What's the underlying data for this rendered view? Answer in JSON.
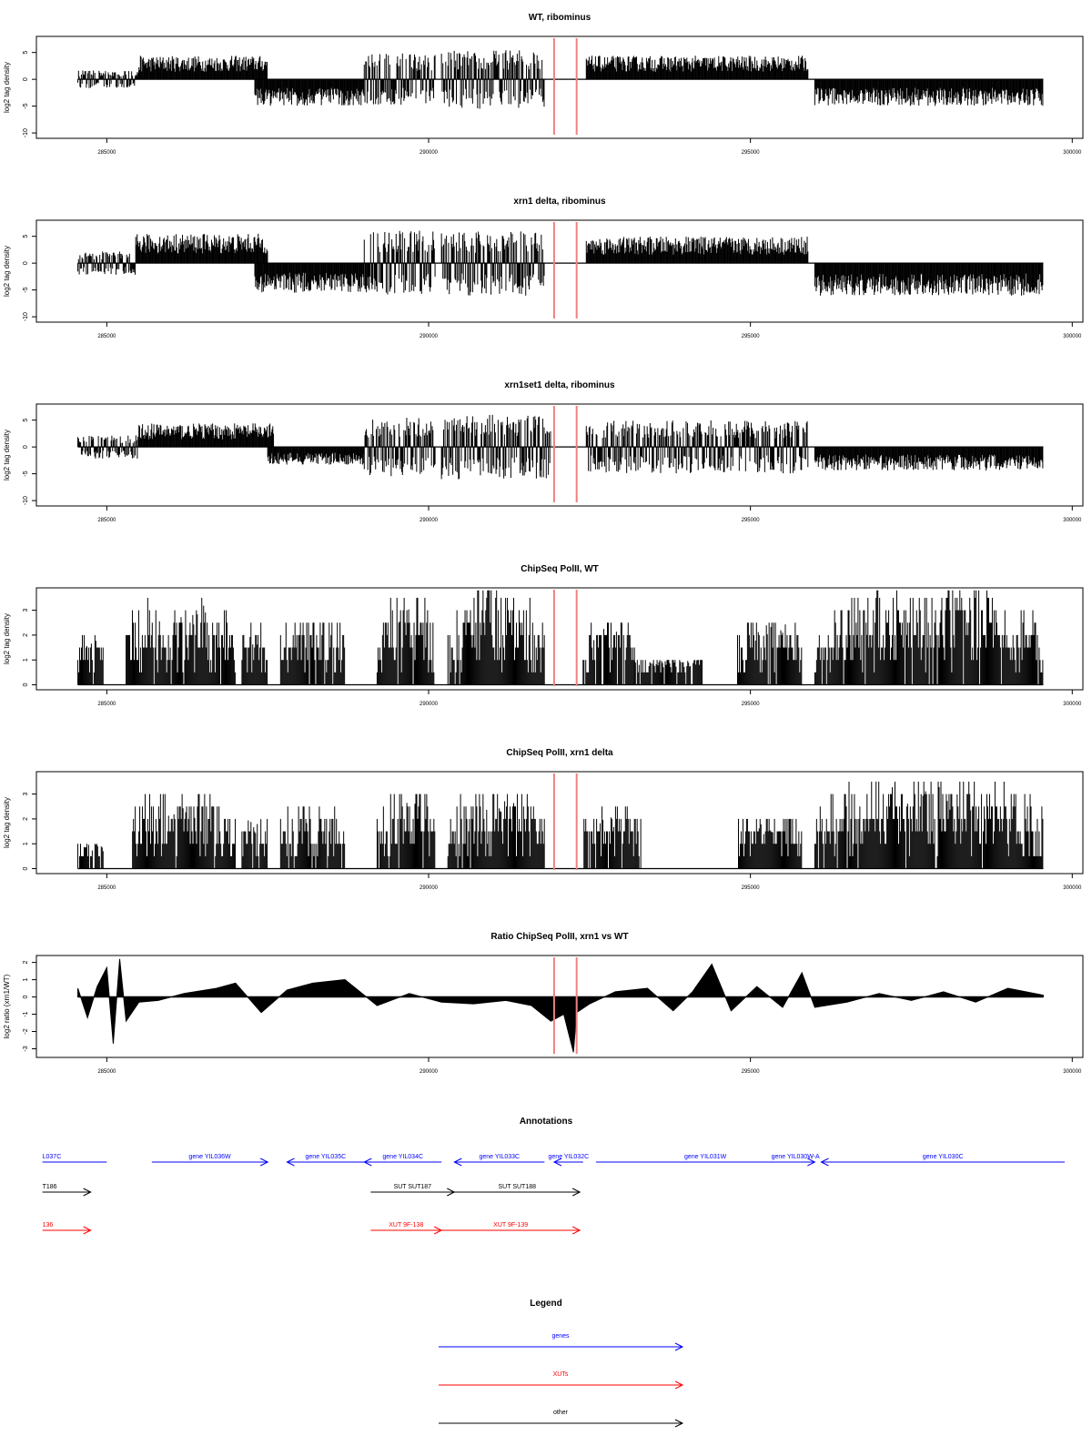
{
  "chart_data": [
    {
      "type": "bar",
      "title": "WT, ribominus",
      "ylabel": "log2 tag density",
      "xlim": [
        284500,
        299600
      ],
      "ylim": [
        -11,
        8
      ],
      "yticks": [
        -10,
        -5,
        0,
        5
      ],
      "xticks": [
        285000,
        290000,
        295000,
        300000
      ],
      "xtick_labels": [
        "285000",
        "290000",
        "295000",
        "300000"
      ],
      "marker_lines_x": [
        291950,
        292300
      ],
      "segments": [
        {
          "start": 284550,
          "end": 285500,
          "amp": 1.5,
          "dir": "mixed"
        },
        {
          "start": 285500,
          "end": 287500,
          "amp": 4.0,
          "dir": "pos"
        },
        {
          "start": 287300,
          "end": 289000,
          "amp": 4.5,
          "dir": "neg"
        },
        {
          "start": 289000,
          "end": 290100,
          "amp": 4.5,
          "dir": "mixed"
        },
        {
          "start": 290200,
          "end": 291800,
          "amp": 5.0,
          "dir": "mixed"
        },
        {
          "start": 292450,
          "end": 295900,
          "amp": 4.0,
          "dir": "pos"
        },
        {
          "start": 296000,
          "end": 299550,
          "amp": 4.5,
          "dir": "neg"
        }
      ]
    },
    {
      "type": "bar",
      "title": "xrn1 delta, ribominus",
      "ylabel": "log2 tag density",
      "xlim": [
        284500,
        299600
      ],
      "ylim": [
        -11,
        8
      ],
      "yticks": [
        -10,
        -5,
        0,
        5
      ],
      "xticks": [
        285000,
        290000,
        295000,
        300000
      ],
      "xtick_labels": [
        "285000",
        "290000",
        "295000",
        "300000"
      ],
      "marker_lines_x": [
        291950,
        292300
      ],
      "segments": [
        {
          "start": 284550,
          "end": 285450,
          "amp": 2.0,
          "dir": "mixed"
        },
        {
          "start": 285450,
          "end": 287500,
          "amp": 5.0,
          "dir": "pos"
        },
        {
          "start": 287300,
          "end": 289000,
          "amp": 5.0,
          "dir": "neg"
        },
        {
          "start": 289000,
          "end": 290100,
          "amp": 5.5,
          "dir": "mixed"
        },
        {
          "start": 290200,
          "end": 291800,
          "amp": 5.5,
          "dir": "mixed"
        },
        {
          "start": 292450,
          "end": 295900,
          "amp": 4.5,
          "dir": "pos"
        },
        {
          "start": 296000,
          "end": 299550,
          "amp": 5.5,
          "dir": "neg"
        }
      ]
    },
    {
      "type": "bar",
      "title": "xrn1set1 delta, ribominus",
      "ylabel": "log2 tag density",
      "xlim": [
        284500,
        299600
      ],
      "ylim": [
        -11,
        8
      ],
      "yticks": [
        -10,
        -5,
        0,
        5
      ],
      "xticks": [
        285000,
        290000,
        295000,
        300000
      ],
      "xtick_labels": [
        "285000",
        "290000",
        "295000",
        "300000"
      ],
      "marker_lines_x": [
        291950,
        292300
      ],
      "segments": [
        {
          "start": 284550,
          "end": 285500,
          "amp": 2.0,
          "dir": "mixed"
        },
        {
          "start": 285500,
          "end": 287600,
          "amp": 4.0,
          "dir": "pos"
        },
        {
          "start": 287500,
          "end": 289000,
          "amp": 3.0,
          "dir": "neg"
        },
        {
          "start": 289000,
          "end": 290100,
          "amp": 5.0,
          "dir": "mixed"
        },
        {
          "start": 290200,
          "end": 291900,
          "amp": 5.5,
          "dir": "mixed"
        },
        {
          "start": 292450,
          "end": 295900,
          "amp": 4.5,
          "dir": "mixed"
        },
        {
          "start": 296000,
          "end": 299550,
          "amp": 4.0,
          "dir": "neg"
        }
      ]
    },
    {
      "type": "bar",
      "title": "ChipSeq PolII, WT",
      "ylabel": "log2 tag density",
      "xlim": [
        284500,
        299600
      ],
      "ylim": [
        -0.2,
        3.9
      ],
      "yticks": [
        0,
        1,
        2,
        3
      ],
      "xticks": [
        285000,
        290000,
        295000,
        300000
      ],
      "xtick_labels": [
        "285000",
        "290000",
        "295000",
        "300000"
      ],
      "marker_lines_x": [
        291950,
        292300
      ],
      "segments": [
        {
          "start": 284550,
          "end": 284950,
          "amp": 1.8,
          "dir": "pos"
        },
        {
          "start": 285300,
          "end": 287000,
          "amp": 3.2,
          "dir": "pos"
        },
        {
          "start": 287100,
          "end": 287500,
          "amp": 2.3,
          "dir": "pos"
        },
        {
          "start": 287700,
          "end": 288700,
          "amp": 2.4,
          "dir": "pos"
        },
        {
          "start": 289200,
          "end": 290100,
          "amp": 3.2,
          "dir": "pos"
        },
        {
          "start": 290300,
          "end": 291800,
          "amp": 3.5,
          "dir": "pos"
        },
        {
          "start": 292400,
          "end": 293200,
          "amp": 2.4,
          "dir": "pos"
        },
        {
          "start": 293200,
          "end": 294300,
          "amp": 1.0,
          "dir": "pos"
        },
        {
          "start": 294800,
          "end": 295800,
          "amp": 2.5,
          "dir": "pos"
        },
        {
          "start": 296000,
          "end": 299550,
          "amp": 3.5,
          "dir": "pos"
        }
      ]
    },
    {
      "type": "bar",
      "title": "ChipSeq PolII, xrn1 delta",
      "ylabel": "log2 tag density",
      "xlim": [
        284500,
        299600
      ],
      "ylim": [
        -0.2,
        3.9
      ],
      "yticks": [
        0,
        1,
        2,
        3
      ],
      "xticks": [
        285000,
        290000,
        295000,
        300000
      ],
      "xtick_labels": [
        "285000",
        "290000",
        "295000",
        "300000"
      ],
      "marker_lines_x": [
        291950,
        292300
      ],
      "segments": [
        {
          "start": 284550,
          "end": 284950,
          "amp": 1.0,
          "dir": "pos"
        },
        {
          "start": 285400,
          "end": 287000,
          "amp": 2.8,
          "dir": "pos"
        },
        {
          "start": 287100,
          "end": 287500,
          "amp": 2.0,
          "dir": "pos"
        },
        {
          "start": 287700,
          "end": 288700,
          "amp": 2.2,
          "dir": "pos"
        },
        {
          "start": 289200,
          "end": 290100,
          "amp": 2.7,
          "dir": "pos"
        },
        {
          "start": 290300,
          "end": 291800,
          "amp": 2.8,
          "dir": "pos"
        },
        {
          "start": 292400,
          "end": 293300,
          "amp": 2.3,
          "dir": "pos"
        },
        {
          "start": 294800,
          "end": 295800,
          "amp": 1.8,
          "dir": "pos"
        },
        {
          "start": 296000,
          "end": 299550,
          "amp": 3.3,
          "dir": "pos"
        }
      ]
    },
    {
      "type": "area",
      "title": "Ratio ChipSeq PolII, xrn1 vs WT",
      "ylabel": "log2 ratio (xrn1/WT)",
      "xlim": [
        284500,
        299600
      ],
      "ylim": [
        -3.5,
        2.4
      ],
      "yticks": [
        -3,
        -2,
        -1,
        0,
        1,
        2
      ],
      "xticks": [
        285000,
        290000,
        295000,
        300000
      ],
      "xtick_labels": [
        "285000",
        "290000",
        "295000",
        "300000"
      ],
      "marker_lines_x": [
        291950,
        292300
      ],
      "x": [
        284550,
        284700,
        284850,
        285000,
        285100,
        285200,
        285300,
        285500,
        285800,
        286200,
        286700,
        287000,
        287400,
        287800,
        288200,
        288700,
        289200,
        289700,
        290200,
        290700,
        291200,
        291600,
        291900,
        292100,
        292250,
        292300,
        292500,
        292900,
        293400,
        293800,
        294100,
        294400,
        294700,
        295100,
        295500,
        295800,
        296000,
        296500,
        297000,
        297500,
        298000,
        298500,
        299000,
        299550
      ],
      "y": [
        0.5,
        -1.2,
        0.6,
        1.7,
        -2.7,
        2.2,
        -1.4,
        -0.3,
        -0.2,
        0.2,
        0.5,
        0.8,
        -0.9,
        0.4,
        0.8,
        1.0,
        -0.5,
        0.2,
        -0.3,
        -0.4,
        -0.2,
        -0.5,
        -1.4,
        -1.0,
        -3.2,
        -0.9,
        -0.4,
        0.3,
        0.5,
        -0.8,
        0.3,
        1.9,
        -0.8,
        0.6,
        -0.6,
        1.4,
        -0.6,
        -0.3,
        0.2,
        -0.2,
        0.3,
        -0.3,
        0.5,
        0.1
      ]
    }
  ],
  "annotations": {
    "title": "Annotations",
    "genes_row": [
      {
        "label": "L037C",
        "x1": 284000,
        "x2": 285000,
        "dir": "none"
      },
      {
        "label": "gene YIL036W",
        "x1": 285700,
        "x2": 287500,
        "dir": "right"
      },
      {
        "label": "gene YIL035C",
        "x1": 287800,
        "x2": 289000,
        "dir": "left"
      },
      {
        "label": "gene YIL034C",
        "x1": 289000,
        "x2": 290200,
        "dir": "left"
      },
      {
        "label": "gene YIL033C",
        "x1": 290400,
        "x2": 291800,
        "dir": "left"
      },
      {
        "label": "gene YIL032C",
        "x1": 291950,
        "x2": 292400,
        "dir": "left"
      },
      {
        "label": "gene YIL031W",
        "x1": 292600,
        "x2": 296000,
        "dir": "right"
      },
      {
        "label": "gene YIL030W-A",
        "x1": 295400,
        "x2": 296000,
        "dir": "none"
      },
      {
        "label": "gene YIL030C",
        "x1": 296100,
        "x2": 300000,
        "dir": "left"
      }
    ],
    "other_row": [
      {
        "label": "T186",
        "x1": 284000,
        "x2": 284750,
        "dir": "right"
      },
      {
        "label": "SUT SUT187",
        "x1": 289100,
        "x2": 290400,
        "dir": "right"
      },
      {
        "label": "SUT SUT188",
        "x1": 290400,
        "x2": 292350,
        "dir": "right"
      }
    ],
    "xut_row": [
      {
        "label": "136",
        "x1": 284000,
        "x2": 284750,
        "dir": "right"
      },
      {
        "label": "XUT 9F-138",
        "x1": 289100,
        "x2": 290200,
        "dir": "right"
      },
      {
        "label": "XUT 9F-139",
        "x1": 290200,
        "x2": 292350,
        "dir": "right"
      }
    ]
  },
  "legend": {
    "title": "Legend",
    "items": [
      {
        "label": "genes",
        "color": "#0000ff"
      },
      {
        "label": "XUTs",
        "color": "#ff0000"
      },
      {
        "label": "other",
        "color": "#000000"
      }
    ]
  },
  "colors": {
    "gene": "#0000ff",
    "xut": "#ff0000",
    "other": "#000000",
    "marker": "#f08080",
    "data": "#000000"
  }
}
